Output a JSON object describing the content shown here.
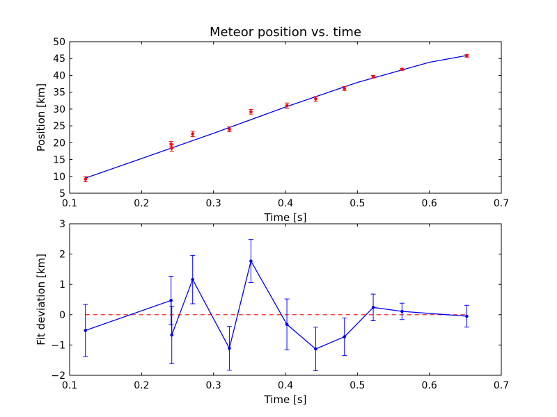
{
  "chart_data": [
    {
      "type": "scatter",
      "title": "Meteor position vs. time",
      "xlabel": "Time [s]",
      "ylabel": "Position [km]",
      "xlim": [
        0.1,
        0.7
      ],
      "ylim": [
        5,
        50
      ],
      "xticks": [
        "0.1",
        "0.2",
        "0.3",
        "0.4",
        "0.5",
        "0.6",
        "0.7"
      ],
      "yticks": [
        "5",
        "10",
        "15",
        "20",
        "25",
        "30",
        "35",
        "40",
        "45",
        "50"
      ],
      "grid": false,
      "colors": {
        "points": "#ff0000",
        "fit": "#0000ff"
      },
      "series": [
        {
          "kind": "errorbar-points",
          "x": [
            0.122,
            0.241,
            0.242,
            0.271,
            0.322,
            0.352,
            0.402,
            0.442,
            0.482,
            0.522,
            0.562,
            0.652
          ],
          "y": [
            9.2,
            19.6,
            18.4,
            22.6,
            24.0,
            29.2,
            31.0,
            33.0,
            36.1,
            39.6,
            41.8,
            45.8
          ],
          "err": [
            0.8,
            0.8,
            0.9,
            0.8,
            0.7,
            0.7,
            0.8,
            0.7,
            0.6,
            0.4,
            0.3,
            0.4
          ]
        },
        {
          "kind": "fit-line",
          "x": [
            0.122,
            0.2,
            0.3,
            0.4,
            0.5,
            0.6,
            0.652
          ],
          "y": [
            9.5,
            15.3,
            22.8,
            30.6,
            37.9,
            43.9,
            45.9
          ]
        }
      ]
    },
    {
      "type": "line",
      "xlabel": "Time [s]",
      "ylabel": "Fit deviation [km]",
      "xlim": [
        0.1,
        0.7
      ],
      "ylim": [
        -2,
        3
      ],
      "xticks": [
        "0.1",
        "0.2",
        "0.3",
        "0.4",
        "0.5",
        "0.6",
        "0.7"
      ],
      "yticks": [
        "−2",
        "−1",
        "0",
        "1",
        "2",
        "3"
      ],
      "grid": false,
      "colors": {
        "line": "#0000ff",
        "zero": "#ff0000"
      },
      "reference_line": {
        "y": 0,
        "style": "dashed"
      },
      "series": [
        {
          "x": [
            0.122,
            0.241,
            0.242,
            0.271,
            0.322,
            0.352,
            0.402,
            0.442,
            0.482,
            0.522,
            0.562,
            0.652
          ],
          "y": [
            -0.52,
            0.47,
            -0.67,
            1.16,
            -1.11,
            1.77,
            -0.32,
            -1.13,
            -0.73,
            0.24,
            0.11,
            -0.05
          ],
          "err": [
            0.86,
            0.8,
            0.95,
            0.8,
            0.72,
            0.71,
            0.84,
            0.72,
            0.62,
            0.44,
            0.27,
            0.36
          ]
        }
      ]
    }
  ]
}
